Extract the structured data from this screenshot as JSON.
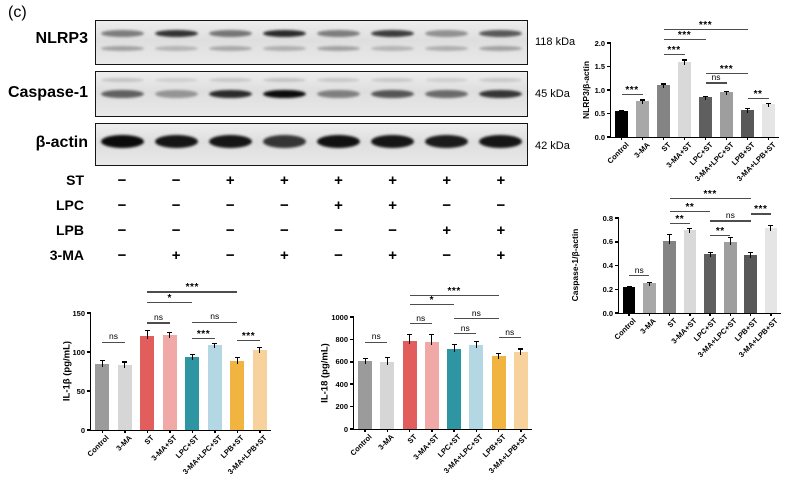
{
  "panel_label": "(c)",
  "blots": {
    "rows": [
      {
        "label": "NLRP3",
        "kda": "118 kDa",
        "lanes": [
          [
            0.55,
            0.5
          ],
          [
            0.95,
            0.35
          ],
          [
            0.6,
            0.45
          ],
          [
            1.0,
            0.4
          ],
          [
            0.55,
            0.5
          ],
          [
            0.9,
            0.35
          ],
          [
            0.45,
            0.4
          ],
          [
            0.75,
            0.5
          ]
        ]
      },
      {
        "label": "Caspase-1",
        "kda": "45 kDa",
        "lanes": [
          [
            0.35,
            0.6
          ],
          [
            0.25,
            0.35
          ],
          [
            0.3,
            0.85
          ],
          [
            0.35,
            1.0
          ],
          [
            0.3,
            0.45
          ],
          [
            0.3,
            0.65
          ],
          [
            0.25,
            0.55
          ],
          [
            0.3,
            0.8
          ]
        ]
      },
      {
        "label": "β-actin",
        "kda": "42 kDa",
        "lanes": [
          [
            1.0
          ],
          [
            0.95
          ],
          [
            0.95
          ],
          [
            0.8
          ],
          [
            0.97
          ],
          [
            0.95
          ],
          [
            0.92
          ],
          [
            0.95
          ]
        ]
      }
    ]
  },
  "treatments": {
    "rows": [
      {
        "label": "ST",
        "signs": [
          "−",
          "−",
          "+",
          "+",
          "+",
          "+",
          "+",
          "+"
        ]
      },
      {
        "label": "LPC",
        "signs": [
          "−",
          "−",
          "−",
          "−",
          "+",
          "+",
          "−",
          "−"
        ]
      },
      {
        "label": "LPB",
        "signs": [
          "−",
          "−",
          "−",
          "−",
          "−",
          "−",
          "+",
          "+"
        ]
      },
      {
        "label": "3-MA",
        "signs": [
          "−",
          "+",
          "−",
          "+",
          "−",
          "+",
          "−",
          "+"
        ]
      }
    ]
  },
  "categories": [
    "Control",
    "3-MA",
    "ST",
    "3-MA+ST",
    "LPC+ST",
    "3-MA+LPC+ST",
    "LPB+ST",
    "3-MA+LPB+ST"
  ],
  "chart_data": [
    {
      "id": "nlrp3",
      "type": "bar",
      "ylabel": "NLRP3/β-actin",
      "ylim": [
        0,
        2.0
      ],
      "yticks": [
        0,
        0.5,
        1.0,
        1.5,
        2.0
      ],
      "ytick_labels": [
        "0.0",
        "0.5",
        "1.0",
        "1.5",
        "2.0"
      ],
      "categories": [
        "Control",
        "3-MA",
        "ST",
        "3-MA+ST",
        "LPC+ST",
        "3-MA+LPC+ST",
        "LPB+ST",
        "3-MA+LPB+ST"
      ],
      "values": [
        0.55,
        0.77,
        1.11,
        1.6,
        0.85,
        0.95,
        0.57,
        0.7
      ],
      "errors": [
        0.02,
        0.03,
        0.03,
        0.05,
        0.02,
        0.03,
        0.05,
        0.03
      ],
      "colors": [
        "#000000",
        "#a8a8a8",
        "#848484",
        "#d9d9d9",
        "#5f5f5f",
        "#9e9e9e",
        "#585858",
        "#e5e5e5"
      ],
      "significance": [
        {
          "a": 0,
          "b": 1,
          "label": "***",
          "y": 0.92
        },
        {
          "a": 2,
          "b": 3,
          "label": "***",
          "y": 1.77
        },
        {
          "a": 2,
          "b": 4,
          "label": "***",
          "y": 2.09
        },
        {
          "a": 2,
          "b": 6,
          "label": "***",
          "y": 2.3
        },
        {
          "a": 4,
          "b": 5,
          "label": "ns",
          "y": 1.16
        },
        {
          "a": 4,
          "b": 6,
          "label": "***",
          "y": 1.36
        },
        {
          "a": 6,
          "b": 7,
          "label": "**",
          "y": 0.84
        }
      ]
    },
    {
      "id": "casp1",
      "type": "bar",
      "ylabel": "Caspase-1/β-actin",
      "ylim": [
        0,
        0.8
      ],
      "yticks": [
        0,
        0.2,
        0.4,
        0.6,
        0.8
      ],
      "ytick_labels": [
        "0.0",
        "0.2",
        "0.4",
        "0.6",
        "0.8"
      ],
      "categories": [
        "Control",
        "3-MA",
        "ST",
        "3-MA+ST",
        "LPC+ST",
        "3-MA+LPC+ST",
        "LPB+ST",
        "3-MA+LPB+ST"
      ],
      "values": [
        0.22,
        0.25,
        0.61,
        0.7,
        0.5,
        0.6,
        0.49,
        0.72
      ],
      "errors": [
        0.01,
        0.01,
        0.055,
        0.015,
        0.015,
        0.04,
        0.025,
        0.02
      ],
      "colors": [
        "#000000",
        "#a8a8a8",
        "#848484",
        "#d9d9d9",
        "#5f5f5f",
        "#9e9e9e",
        "#585858",
        "#e5e5e5"
      ],
      "significance": [
        {
          "a": 0,
          "b": 1,
          "label": "ns",
          "y": 0.32
        },
        {
          "a": 2,
          "b": 3,
          "label": "**",
          "y": 0.76
        },
        {
          "a": 2,
          "b": 4,
          "label": "**",
          "y": 0.86
        },
        {
          "a": 2,
          "b": 6,
          "label": "***",
          "y": 0.97
        },
        {
          "a": 4,
          "b": 5,
          "label": "**",
          "y": 0.66
        },
        {
          "a": 4,
          "b": 6,
          "label": "ns",
          "y": 0.78
        },
        {
          "a": 6,
          "b": 7,
          "label": "***",
          "y": 0.84
        }
      ]
    },
    {
      "id": "il1b",
      "type": "bar",
      "ylabel": "IL-1β (pg/mL)",
      "ylim": [
        0,
        150
      ],
      "yticks": [
        0,
        50,
        100,
        150
      ],
      "ytick_labels": [
        "0",
        "50",
        "100",
        "150"
      ],
      "categories": [
        "Control",
        "3-MA",
        "ST",
        "3-MA+ST",
        "LPC+ST",
        "3-MA+LPC+ST",
        "LPB+ST",
        "3-MA+LPB+ST"
      ],
      "values": [
        84,
        83,
        121,
        122,
        94,
        109,
        89,
        103
      ],
      "errors": [
        6,
        5,
        7,
        4,
        4,
        3,
        5,
        4
      ],
      "colors": [
        "#9b9b9b",
        "#d6d6d6",
        "#e25e5c",
        "#f0a9a6",
        "#2e96a2",
        "#b4d8e3",
        "#f2b440",
        "#f7d29c"
      ],
      "significance": [
        {
          "a": 0,
          "b": 1,
          "label": "ns",
          "y": 113
        },
        {
          "a": 2,
          "b": 3,
          "label": "ns",
          "y": 138
        },
        {
          "a": 2,
          "b": 4,
          "label": "*",
          "y": 164
        },
        {
          "a": 2,
          "b": 6,
          "label": "***",
          "y": 178
        },
        {
          "a": 4,
          "b": 5,
          "label": "***",
          "y": 118
        },
        {
          "a": 4,
          "b": 6,
          "label": "ns",
          "y": 139
        },
        {
          "a": 6,
          "b": 7,
          "label": "***",
          "y": 116
        }
      ]
    },
    {
      "id": "il18",
      "type": "bar",
      "ylabel": "IL-18 (pg/mL)",
      "ylim": [
        0,
        1000
      ],
      "yticks": [
        0,
        200,
        400,
        600,
        800,
        1000
      ],
      "ytick_labels": [
        "0",
        "200",
        "400",
        "600",
        "800",
        "1000"
      ],
      "categories": [
        "Control",
        "3-MA",
        "ST",
        "3-MA+ST",
        "LPC+ST",
        "3-MA+LPC+ST",
        "LPB+ST",
        "3-MA+LPB+ST"
      ],
      "values": [
        605,
        600,
        790,
        780,
        710,
        750,
        650,
        690
      ],
      "errors": [
        30,
        45,
        60,
        70,
        50,
        40,
        30,
        30
      ],
      "colors": [
        "#9b9b9b",
        "#d6d6d6",
        "#e25e5c",
        "#f0a9a6",
        "#2e96a2",
        "#b4d8e3",
        "#f2b440",
        "#f7d29c"
      ],
      "significance": [
        {
          "a": 0,
          "b": 1,
          "label": "ns",
          "y": 777
        },
        {
          "a": 2,
          "b": 3,
          "label": "ns",
          "y": 946
        },
        {
          "a": 2,
          "b": 4,
          "label": "*",
          "y": 1116
        },
        {
          "a": 2,
          "b": 6,
          "label": "***",
          "y": 1200
        },
        {
          "a": 4,
          "b": 5,
          "label": "ns",
          "y": 857
        },
        {
          "a": 4,
          "b": 6,
          "label": "ns",
          "y": 991
        },
        {
          "a": 6,
          "b": 7,
          "label": "ns",
          "y": 821
        }
      ]
    }
  ]
}
